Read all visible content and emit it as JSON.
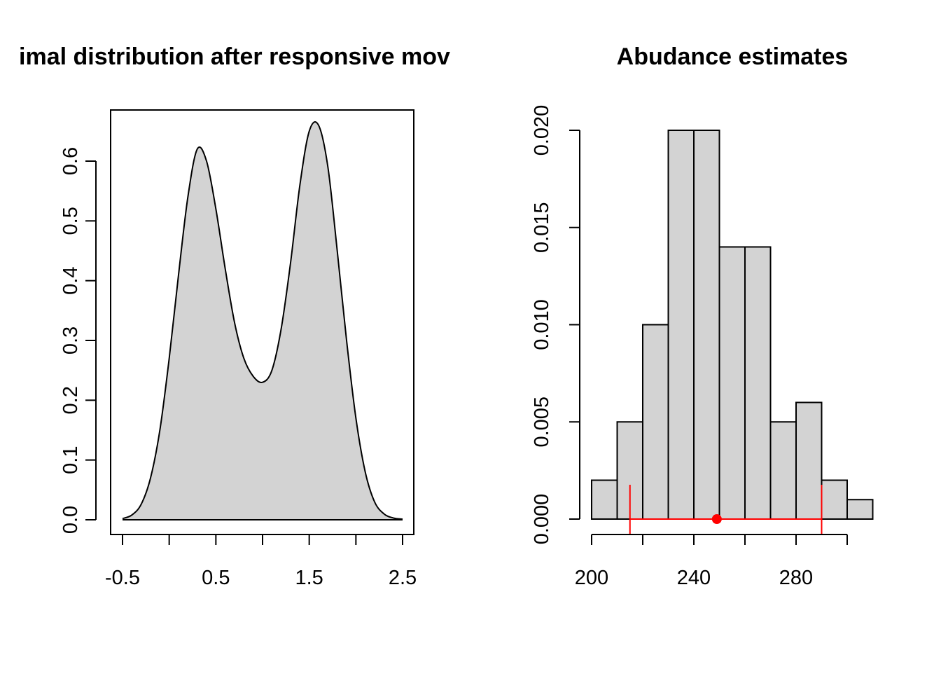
{
  "colors": {
    "fill": "#d3d3d3",
    "line": "#000000",
    "accent": "#ff0000",
    "background": "#ffffff"
  },
  "chart_data": [
    {
      "type": "area",
      "title": "imal distribution after responsive mov",
      "xlabel": "",
      "ylabel": "",
      "xlim": [
        -0.5,
        2.5
      ],
      "ylim": [
        0,
        0.66
      ],
      "box": true,
      "grid": false,
      "x_ticks": [
        -0.5,
        0,
        0.5,
        1,
        1.5,
        2,
        2.5
      ],
      "x_tick_labels": [
        "-0.5",
        "0.5",
        "1.5",
        "2.5"
      ],
      "y_ticks": [
        0.0,
        0.1,
        0.2,
        0.3,
        0.4,
        0.5,
        0.6
      ],
      "y_tick_labels": [
        "0.0",
        "0.1",
        "0.2",
        "0.3",
        "0.4",
        "0.5",
        "0.6"
      ],
      "series": [
        {
          "x": [
            -0.5,
            -0.4,
            -0.3,
            -0.2,
            -0.1,
            0.0,
            0.1,
            0.2,
            0.3,
            0.4,
            0.5,
            0.6,
            0.7,
            0.8,
            0.9,
            1.0,
            1.1,
            1.2,
            1.3,
            1.4,
            1.5,
            1.6,
            1.7,
            1.8,
            1.9,
            2.0,
            2.1,
            2.2,
            2.3,
            2.4,
            2.5
          ],
          "y": [
            0.002,
            0.008,
            0.026,
            0.07,
            0.15,
            0.27,
            0.41,
            0.54,
            0.62,
            0.6,
            0.52,
            0.42,
            0.33,
            0.27,
            0.24,
            0.23,
            0.25,
            0.32,
            0.43,
            0.56,
            0.65,
            0.66,
            0.59,
            0.45,
            0.3,
            0.17,
            0.08,
            0.03,
            0.01,
            0.003,
            0.001
          ]
        }
      ]
    },
    {
      "type": "bar",
      "title": "Abudance estimates",
      "xlabel": "",
      "ylabel": "",
      "xlim": [
        200,
        310
      ],
      "ylim": [
        0,
        0.02
      ],
      "grid": false,
      "x_ticks": [
        200,
        220,
        240,
        260,
        280,
        300
      ],
      "x_tick_labels": [
        "200",
        "240",
        "280"
      ],
      "y_ticks": [
        0.0,
        0.005,
        0.01,
        0.015,
        0.02
      ],
      "y_tick_labels": [
        "0.000",
        "0.005",
        "0.010",
        "0.015",
        "0.020"
      ],
      "bins": [
        {
          "x0": 200,
          "x1": 210,
          "density": 0.002
        },
        {
          "x0": 210,
          "x1": 220,
          "density": 0.005
        },
        {
          "x0": 220,
          "x1": 230,
          "density": 0.01
        },
        {
          "x0": 230,
          "x1": 240,
          "density": 0.02
        },
        {
          "x0": 240,
          "x1": 250,
          "density": 0.02
        },
        {
          "x0": 250,
          "x1": 260,
          "density": 0.014
        },
        {
          "x0": 260,
          "x1": 270,
          "density": 0.014
        },
        {
          "x0": 270,
          "x1": 280,
          "density": 0.005
        },
        {
          "x0": 280,
          "x1": 290,
          "density": 0.006
        },
        {
          "x0": 290,
          "x1": 300,
          "density": 0.002
        },
        {
          "x0": 300,
          "x1": 310,
          "density": 0.001
        }
      ],
      "interval": {
        "lower": 215,
        "upper": 290,
        "point": 249
      }
    }
  ]
}
